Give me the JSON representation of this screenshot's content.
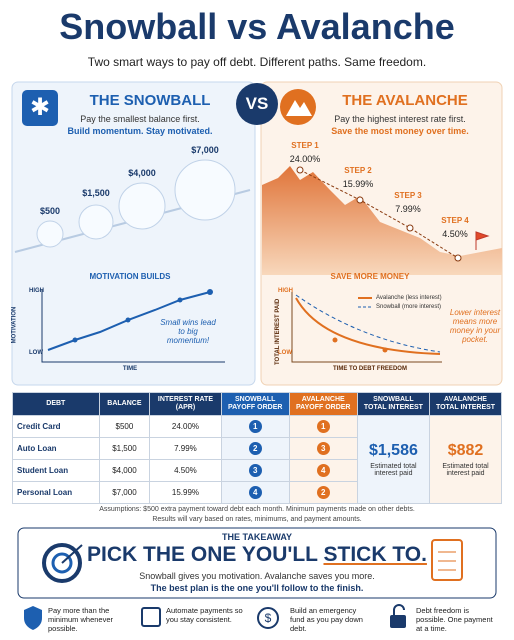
{
  "header": {
    "title": "Snowball vs Avalanche",
    "subtitle": "Two smart ways to pay off debt. Different paths. Same freedom."
  },
  "vs": "VS",
  "snowball": {
    "title": "THE SNOWBALL",
    "line1": "Pay the smallest balance first.",
    "line2": "Build momentum. Stay motivated.",
    "balls": [
      "$500",
      "$1,500",
      "$4,000",
      "$7,000"
    ],
    "chart_title": "MOTIVATION BUILDS",
    "y_label": "MOTIVATION",
    "high": "HIGH",
    "low": "LOW",
    "x_label": "TIME",
    "note": "Small wins lead to big momentum!"
  },
  "avalanche": {
    "title": "THE AVALANCHE",
    "line1": "Pay the highest interest rate first.",
    "line2": "Save the most money over time.",
    "steps": [
      {
        "label": "STEP 1",
        "rate": "24.00%"
      },
      {
        "label": "STEP 2",
        "rate": "15.99%"
      },
      {
        "label": "STEP 3",
        "rate": "7.99%"
      },
      {
        "label": "STEP 4",
        "rate": "4.50%"
      }
    ],
    "chart_title": "SAVE MORE MONEY",
    "y_label": "TOTAL INTEREST PAID",
    "high": "HIGH",
    "low": "LOW",
    "x_label": "TIME TO DEBT FREEDOM",
    "legend": [
      "Avalanche (less interest)",
      "Snowball (more interest)"
    ],
    "note": "Lower interest means more money in your pocket."
  },
  "table": {
    "headers": [
      "DEBT",
      "BALANCE",
      "INTEREST RATE (APR)",
      "SNOWBALL PAYOFF ORDER",
      "AVALANCHE PAYOFF ORDER",
      "SNOWBALL TOTAL INTEREST",
      "AVALANCHE TOTAL INTEREST"
    ],
    "rows": [
      [
        "Credit Card",
        "$500",
        "24.00%",
        "1",
        "1"
      ],
      [
        "Auto Loan",
        "$1,500",
        "7.99%",
        "2",
        "3"
      ],
      [
        "Student Loan",
        "$4,000",
        "4.50%",
        "3",
        "4"
      ],
      [
        "Personal Loan",
        "$7,000",
        "15.99%",
        "4",
        "2"
      ]
    ],
    "snowball_total": "$1,586",
    "snowball_total_note": "Estimated total interest paid",
    "avalanche_total": "$882",
    "avalanche_total_note": "Estimated total interest paid"
  },
  "assumptions": [
    "Assumptions: $500 extra payment toward debt each month. Minimum payments made on other debts.",
    "Results will vary based on rates, minimums, and payment amounts."
  ],
  "takeaway": {
    "label": "THE TAKEAWAY",
    "headline": "PICK THE ONE YOU'LL",
    "headline_emphasis": "STICK TO.",
    "line1": "Snowball gives you motivation. Avalanche saves you more.",
    "line2": "The best plan is the one you'll follow to the finish."
  },
  "tips": [
    "Pay more than the minimum whenever possible.",
    "Automate payments so you stay consistent.",
    "Build an emergency fund as you pay down debt.",
    "Debt freedom is possible. One payment at a time."
  ]
}
